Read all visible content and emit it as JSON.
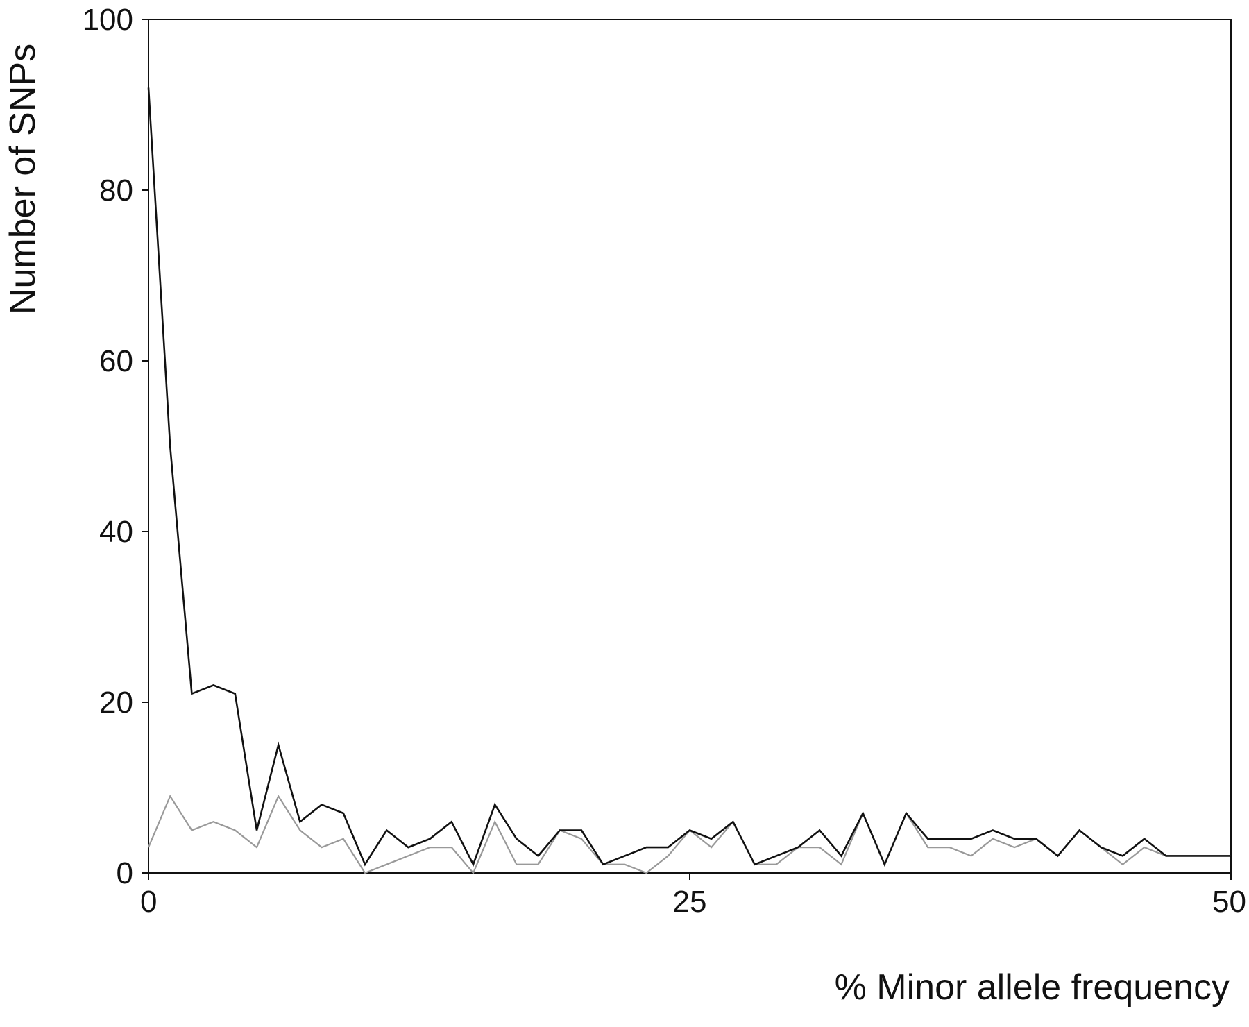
{
  "chart_data": {
    "type": "line",
    "title": "",
    "xlabel": "% Minor allele frequency",
    "ylabel": "Number of SNPs",
    "xlim": [
      0,
      50
    ],
    "ylim": [
      0,
      100
    ],
    "x_ticks": [
      "0",
      "25",
      "50"
    ],
    "y_ticks": [
      "0",
      "20",
      "40",
      "60",
      "80",
      "100"
    ],
    "grid": false,
    "legend": "none",
    "x": [
      0,
      1,
      2,
      3,
      4,
      5,
      6,
      7,
      8,
      9,
      10,
      11,
      12,
      13,
      14,
      15,
      16,
      17,
      18,
      19,
      20,
      21,
      22,
      23,
      24,
      25,
      26,
      27,
      28,
      29,
      30,
      31,
      32,
      33,
      34,
      35,
      36,
      37,
      38,
      39,
      40,
      41,
      42,
      43,
      44,
      45,
      46,
      47,
      48,
      49,
      50
    ],
    "series": [
      {
        "color": "#111111",
        "values": [
          92,
          50,
          21,
          22,
          21,
          5,
          15,
          6,
          8,
          7,
          1,
          5,
          3,
          4,
          6,
          1,
          8,
          4,
          2,
          5,
          5,
          1,
          2,
          3,
          3,
          5,
          4,
          6,
          1,
          2,
          3,
          5,
          2,
          7,
          1,
          7,
          4,
          4,
          4,
          5,
          4,
          4,
          2,
          5,
          3,
          2,
          4,
          2,
          2,
          2,
          2
        ]
      },
      {
        "color": "#999999",
        "values": [
          3,
          9,
          5,
          6,
          5,
          3,
          9,
          5,
          3,
          4,
          0,
          1,
          2,
          3,
          3,
          0,
          6,
          1,
          1,
          5,
          4,
          1,
          1,
          0,
          2,
          5,
          3,
          6,
          1,
          1,
          3,
          3,
          1,
          7,
          1,
          7,
          3,
          3,
          2,
          4,
          3,
          4,
          2,
          5,
          3,
          1,
          3,
          2,
          2,
          2,
          2
        ]
      }
    ]
  }
}
